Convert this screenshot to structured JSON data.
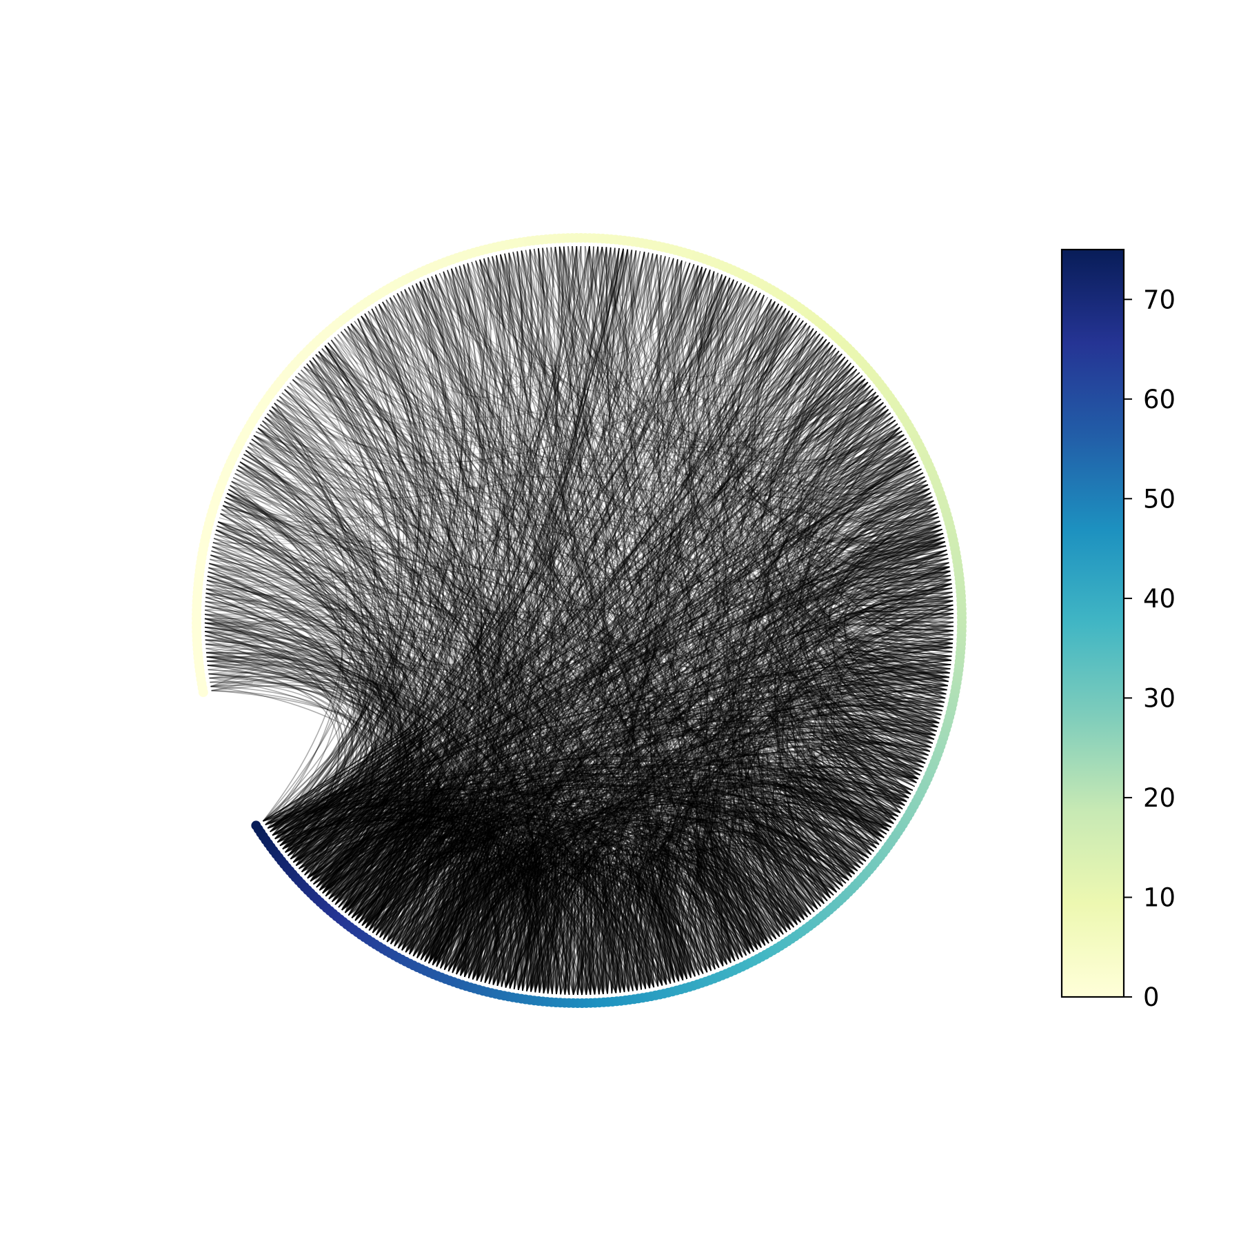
{
  "chart_data": {
    "type": "chord",
    "title": "",
    "description_of_marks": "Circular network (circos-style) plot: nodes placed around a circle sorted by degree, edges drawn as black curved chords; node ring colored by degree with YlGnBu colormap",
    "node_count": 520,
    "node_degree_range": [
      0,
      75
    ],
    "colorbar": {
      "cmap": "YlGnBu",
      "range": [
        0,
        75
      ],
      "ticks": [
        0,
        10,
        20,
        30,
        40,
        50,
        60,
        70
      ],
      "tick_labels": [
        "0",
        "10",
        "20",
        "30",
        "40",
        "50",
        "60",
        "70"
      ]
    },
    "colors": {
      "edge": "#000000",
      "cmap_stops": [
        "#ffffd9",
        "#edf8b1",
        "#c7e9b4",
        "#7fcdbb",
        "#41b6c4",
        "#1d91c0",
        "#225ea8",
        "#253494",
        "#081d58"
      ]
    }
  }
}
